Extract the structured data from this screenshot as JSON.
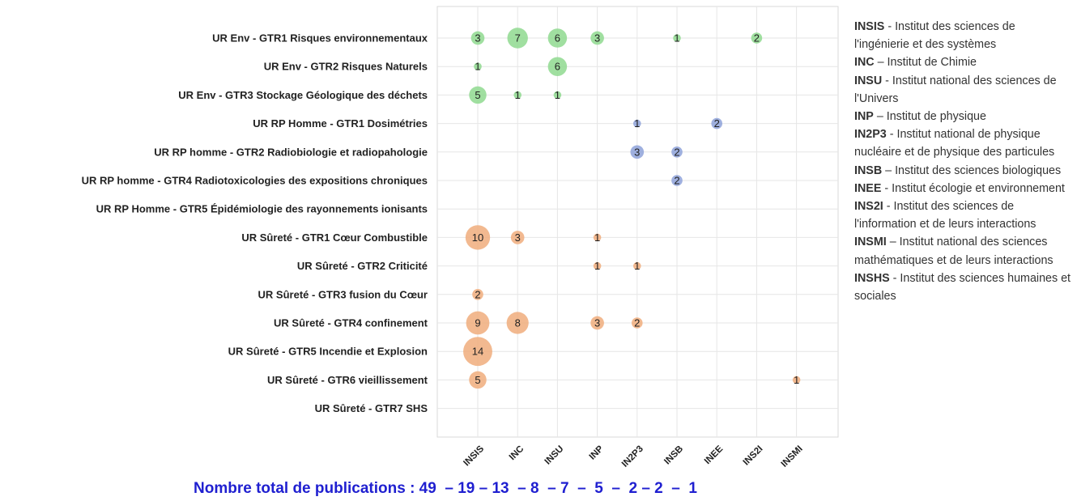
{
  "chart_data": {
    "type": "scatter",
    "categories_x": [
      "INSIS",
      "INC",
      "INSU",
      "INP",
      "IN2P3",
      "INSB",
      "INEE",
      "INS2I",
      "INSMI"
    ],
    "categories_y": [
      "UR Env - GTR1 Risques environnementaux",
      "UR Env - GTR2 Risques Naturels",
      "UR Env - GTR3 Stockage Géologique des déchets",
      "UR RP Homme - GTR1 Dosimétries",
      "UR RP homme - GTR2 Radiobiologie et radiopahologie",
      "UR RP homme - GTR4 Radiotoxicologies des expositions chroniques",
      "UR RP Homme - GTR5 Épidémiologie des rayonnements ionisants",
      "UR Sûreté - GTR1 Cœur Combustible",
      "UR Sûreté - GTR2 Criticité",
      "UR Sûreté - GTR3 fusion du Cœur",
      "UR Sûreté - GTR4 confinement",
      "UR Sûreté - GTR5 Incendie et Explosion",
      "UR Sûreté - GTR6 vieillissement",
      "UR Sûreté - GTR7 SHS"
    ],
    "points": [
      {
        "row": 0,
        "col": 0,
        "value": 3,
        "group": "env"
      },
      {
        "row": 0,
        "col": 1,
        "value": 7,
        "group": "env"
      },
      {
        "row": 0,
        "col": 2,
        "value": 6,
        "group": "env"
      },
      {
        "row": 0,
        "col": 3,
        "value": 3,
        "group": "env"
      },
      {
        "row": 0,
        "col": 5,
        "value": 1,
        "group": "env"
      },
      {
        "row": 0,
        "col": 7,
        "value": 2,
        "group": "env"
      },
      {
        "row": 1,
        "col": 0,
        "value": 1,
        "group": "env"
      },
      {
        "row": 1,
        "col": 2,
        "value": 6,
        "group": "env"
      },
      {
        "row": 2,
        "col": 0,
        "value": 5,
        "group": "env"
      },
      {
        "row": 2,
        "col": 1,
        "value": 1,
        "group": "env"
      },
      {
        "row": 2,
        "col": 2,
        "value": 1,
        "group": "env"
      },
      {
        "row": 3,
        "col": 4,
        "value": 1,
        "group": "rp"
      },
      {
        "row": 3,
        "col": 6,
        "value": 2,
        "group": "rp"
      },
      {
        "row": 4,
        "col": 4,
        "value": 3,
        "group": "rp"
      },
      {
        "row": 4,
        "col": 5,
        "value": 2,
        "group": "rp"
      },
      {
        "row": 5,
        "col": 5,
        "value": 2,
        "group": "rp"
      },
      {
        "row": 7,
        "col": 0,
        "value": 10,
        "group": "surete"
      },
      {
        "row": 7,
        "col": 1,
        "value": 3,
        "group": "surete"
      },
      {
        "row": 7,
        "col": 3,
        "value": 1,
        "group": "surete"
      },
      {
        "row": 8,
        "col": 3,
        "value": 1,
        "group": "surete"
      },
      {
        "row": 8,
        "col": 4,
        "value": 1,
        "group": "surete"
      },
      {
        "row": 9,
        "col": 0,
        "value": 2,
        "group": "surete"
      },
      {
        "row": 10,
        "col": 0,
        "value": 9,
        "group": "surete"
      },
      {
        "row": 10,
        "col": 1,
        "value": 8,
        "group": "surete"
      },
      {
        "row": 10,
        "col": 3,
        "value": 3,
        "group": "surete"
      },
      {
        "row": 10,
        "col": 4,
        "value": 2,
        "group": "surete"
      },
      {
        "row": 11,
        "col": 0,
        "value": 14,
        "group": "surete"
      },
      {
        "row": 12,
        "col": 0,
        "value": 5,
        "group": "surete"
      },
      {
        "row": 12,
        "col": 8,
        "value": 1,
        "group": "surete"
      }
    ],
    "group_colors": {
      "env": "#8fd98f",
      "rp": "#8ea2d9",
      "surete": "#f0ad7c"
    },
    "grid": true
  },
  "legend": [
    {
      "abbr": "INSIS",
      "sep": " - ",
      "text": "Institut des sciences de l'ingénierie et des systèmes"
    },
    {
      "abbr": "INC",
      "sep": " – ",
      "text": "Institut de Chimie"
    },
    {
      "abbr": "INSU",
      "sep": " - ",
      "text": "Institut national des sciences de l'Univers"
    },
    {
      "abbr": "INP",
      "sep": " – ",
      "text": "Institut de physique"
    },
    {
      "abbr": "IN2P3",
      "sep": " - ",
      "text": "Institut national de physique nucléaire et de physique des particules"
    },
    {
      "abbr": "INSB",
      "sep": " – ",
      "text": "Institut des sciences biologiques"
    },
    {
      "abbr": "INEE",
      "sep": " - ",
      "text": "Institut écologie et environnement"
    },
    {
      "abbr": "INS2I",
      "sep": " - ",
      "text": "Institut des sciences de l'information et de leurs interactions"
    },
    {
      "abbr": "INSMI",
      "sep": " – ",
      "text": "Institut national des sciences mathématiques et de leurs interactions"
    },
    {
      "abbr": "INSHS",
      "sep": " - ",
      "text": "Institut des sciences humaines et sociales"
    }
  ],
  "totals_text": "Nombre total de publications : 49  – 19 – 13  – 8  – 7  –  5  –  2 – 2  –  1"
}
